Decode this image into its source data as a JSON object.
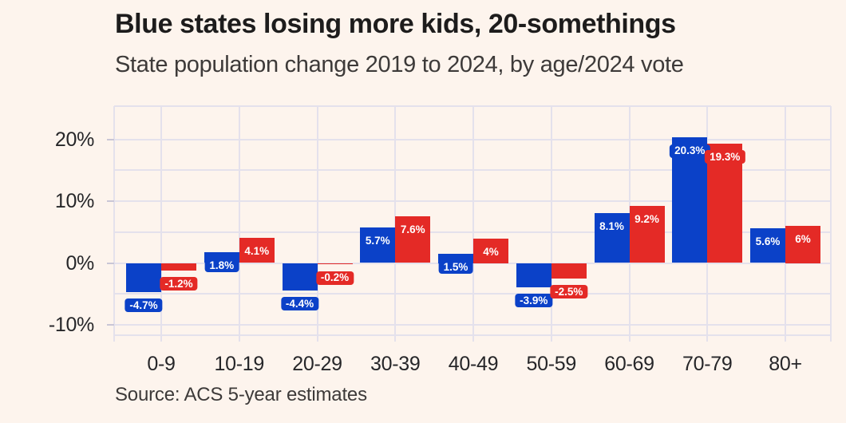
{
  "colors": {
    "background": "#fdf4ed",
    "blue_bar": "#0b41c8",
    "red_bar": "#e42a26",
    "gridline": "#e4e1ec",
    "tick": "#c9c6d6",
    "title_text": "#1d1c1c",
    "subtitle_text": "#3d3a39",
    "axis_text": "#262629",
    "badge_text": "#ffffff"
  },
  "chart_data": {
    "type": "bar",
    "title": "Blue states losing more kids, 20-somethings",
    "subtitle": "State population change 2019 to 2024, by age/2024 vote",
    "source": "Source: ACS 5-year estimates",
    "xlabel": "",
    "ylabel": "",
    "categories": [
      "0-9",
      "10-19",
      "20-29",
      "30-39",
      "40-49",
      "50-59",
      "60-69",
      "70-79",
      "80+"
    ],
    "series": [
      {
        "name": "blue",
        "color": "#0b41c8",
        "values": [
          -4.7,
          1.8,
          -4.4,
          5.7,
          1.5,
          -3.9,
          8.1,
          20.3,
          5.6
        ],
        "labels": [
          "-4.7%",
          "1.8%",
          "-4.4%",
          "5.7%",
          "1.5%",
          "-3.9%",
          "8.1%",
          "20.3%",
          "5.6%"
        ]
      },
      {
        "name": "red",
        "color": "#e42a26",
        "values": [
          -1.2,
          4.1,
          -0.2,
          7.6,
          4,
          -2.5,
          9.2,
          19.3,
          6
        ],
        "labels": [
          "-1.2%",
          "4.1%",
          "-0.2%",
          "7.6%",
          "4%",
          "-2.5%",
          "9.2%",
          "19.3%",
          "6%"
        ]
      }
    ],
    "y_ticks": [
      {
        "label": "20%",
        "value": 20
      },
      {
        "label": "10%",
        "value": 10
      },
      {
        "label": "0%",
        "value": 0
      },
      {
        "label": "-10%",
        "value": -10
      }
    ],
    "gridline_values": [
      -10,
      -5,
      0,
      5,
      10,
      15,
      20
    ],
    "ylim": [
      -11.6,
      25.4
    ],
    "grid": true,
    "legend": "none"
  }
}
